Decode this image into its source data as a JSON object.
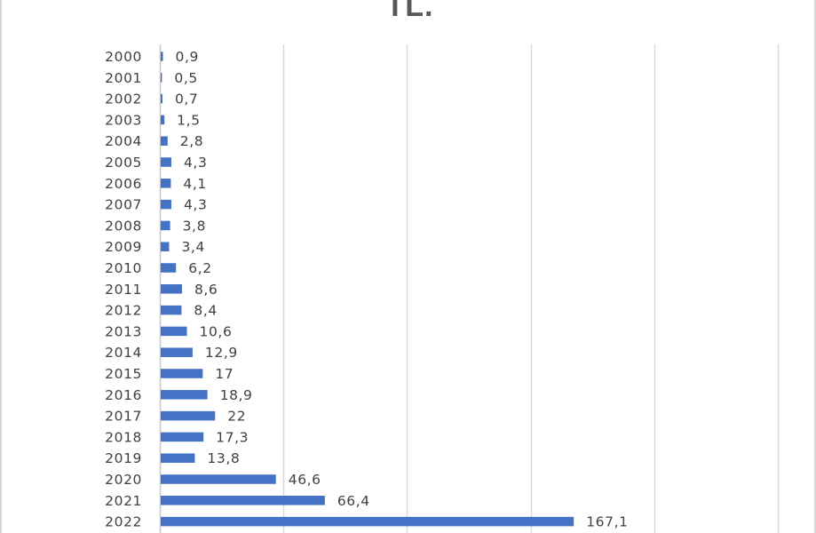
{
  "chart_data": {
    "type": "bar",
    "orientation": "horizontal",
    "title": "TL.",
    "categories": [
      "2000",
      "2001",
      "2002",
      "2003",
      "2004",
      "2005",
      "2006",
      "2007",
      "2008",
      "2009",
      "2010",
      "2011",
      "2012",
      "2013",
      "2014",
      "2015",
      "2016",
      "2017",
      "2018",
      "2019",
      "2020",
      "2021",
      "2022"
    ],
    "values": [
      0.9,
      0.5,
      0.7,
      1.5,
      2.8,
      4.3,
      4.1,
      4.3,
      3.8,
      3.4,
      6.2,
      8.6,
      8.4,
      10.6,
      12.9,
      17,
      18.9,
      22,
      17.3,
      13.8,
      46.6,
      66.4,
      167.1
    ],
    "value_labels": [
      "0,9",
      "0,5",
      "0,7",
      "1,5",
      "2,8",
      "4,3",
      "4,1",
      "4,3",
      "3,8",
      "3,4",
      "6,2",
      "8,6",
      "8,4",
      "10,6",
      "12,9",
      "17",
      "18,9",
      "22",
      "17,3",
      "13,8",
      "46,6",
      "66,4",
      "167,1"
    ],
    "xlim": [
      0,
      250
    ],
    "grid_step": 50,
    "grid": true,
    "legend": "none",
    "colors": {
      "bar": "#4472c4",
      "gridline": "#d9d9d9",
      "text": "#404040"
    }
  }
}
